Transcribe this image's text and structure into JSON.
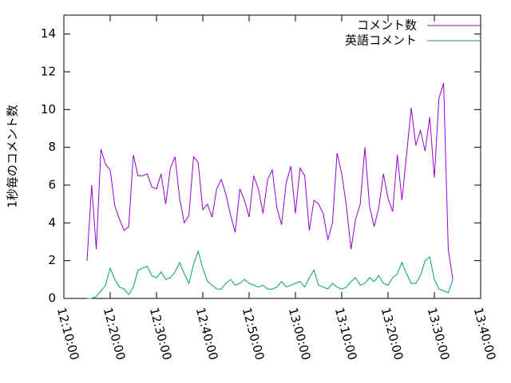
{
  "chart_data": {
    "type": "line",
    "y_label": "1秒毎のコメント数",
    "x": [
      "12:15:00",
      "12:16:00",
      "12:17:00",
      "12:18:00",
      "12:19:00",
      "12:20:00",
      "12:21:00",
      "12:22:00",
      "12:23:00",
      "12:24:00",
      "12:25:00",
      "12:26:00",
      "12:27:00",
      "12:28:00",
      "12:29:00",
      "12:30:00",
      "12:31:00",
      "12:32:00",
      "12:33:00",
      "12:34:00",
      "12:35:00",
      "12:36:00",
      "12:37:00",
      "12:38:00",
      "12:39:00",
      "12:40:00",
      "12:41:00",
      "12:42:00",
      "12:43:00",
      "12:44:00",
      "12:45:00",
      "12:46:00",
      "12:47:00",
      "12:48:00",
      "12:49:00",
      "12:50:00",
      "12:51:00",
      "12:52:00",
      "12:53:00",
      "12:54:00",
      "12:55:00",
      "12:56:00",
      "12:57:00",
      "12:58:00",
      "12:59:00",
      "13:00:00",
      "13:01:00",
      "13:02:00",
      "13:03:00",
      "13:04:00",
      "13:05:00",
      "13:06:00",
      "13:07:00",
      "13:08:00",
      "13:09:00",
      "13:10:00",
      "13:11:00",
      "13:12:00",
      "13:13:00",
      "13:14:00",
      "13:15:00",
      "13:16:00",
      "13:17:00",
      "13:18:00",
      "13:19:00",
      "13:20:00",
      "13:21:00",
      "13:22:00",
      "13:23:00",
      "13:24:00",
      "13:25:00",
      "13:26:00",
      "13:27:00",
      "13:28:00",
      "13:29:00",
      "13:30:00",
      "13:31:00",
      "13:32:00",
      "13:33:00",
      "13:34:00"
    ],
    "series": [
      {
        "name": "コメント数",
        "color": "#9400d3",
        "values": [
          2.0,
          6.0,
          2.6,
          7.9,
          7.1,
          6.8,
          4.9,
          4.2,
          3.6,
          3.8,
          7.6,
          6.5,
          6.5,
          6.6,
          5.9,
          5.8,
          6.6,
          5.0,
          6.9,
          7.5,
          5.3,
          4.0,
          4.4,
          7.5,
          7.2,
          4.7,
          5.0,
          4.3,
          5.8,
          6.3,
          5.5,
          4.4,
          3.5,
          5.8,
          5.2,
          4.3,
          6.5,
          5.8,
          4.5,
          6.3,
          6.8,
          4.8,
          3.9,
          6.1,
          7.0,
          4.5,
          6.9,
          6.5,
          3.6,
          5.2,
          5.0,
          4.5,
          3.1,
          4.0,
          7.7,
          6.6,
          4.9,
          2.6,
          4.2,
          5.0,
          8.0,
          4.9,
          3.8,
          4.8,
          6.6,
          5.3,
          4.6,
          7.6,
          5.2,
          7.6,
          10.1,
          8.1,
          8.9,
          7.8,
          9.6,
          6.4,
          10.6,
          11.4,
          2.6,
          1.0
        ]
      },
      {
        "name": "英語コメント",
        "color": "#009e73",
        "values": [
          0,
          0,
          0.1,
          0.4,
          0.7,
          1.6,
          1.0,
          0.6,
          0.5,
          0.2,
          0.6,
          1.5,
          1.6,
          1.7,
          1.2,
          1.1,
          1.4,
          1.0,
          1.1,
          1.4,
          1.9,
          1.3,
          0.8,
          1.8,
          2.5,
          1.6,
          0.9,
          0.7,
          0.5,
          0.5,
          0.8,
          1.0,
          0.7,
          0.8,
          1.0,
          0.8,
          0.7,
          0.6,
          0.7,
          0.5,
          0.5,
          0.6,
          0.9,
          0.6,
          0.7,
          0.8,
          0.9,
          0.6,
          1.1,
          1.5,
          0.7,
          0.6,
          0.5,
          0.8,
          0.6,
          0.5,
          0.6,
          0.9,
          1.1,
          0.7,
          0.8,
          1.1,
          0.9,
          1.2,
          0.8,
          0.7,
          1.1,
          1.3,
          1.9,
          1.3,
          0.8,
          0.8,
          1.2,
          2.0,
          2.2,
          1.0,
          0.5,
          0.4,
          0.3,
          1.0
        ]
      }
    ],
    "xlim": [
      "12:10:00",
      "13:40:00"
    ],
    "xticks": [
      "12:10:00",
      "12:20:00",
      "12:30:00",
      "12:40:00",
      "12:50:00",
      "13:00:00",
      "13:10:00",
      "13:20:00",
      "13:30:00",
      "13:40:00"
    ],
    "ylim": [
      0,
      15
    ],
    "yticks": [
      0,
      2,
      4,
      6,
      8,
      10,
      12,
      14
    ],
    "legend": "top-right"
  }
}
